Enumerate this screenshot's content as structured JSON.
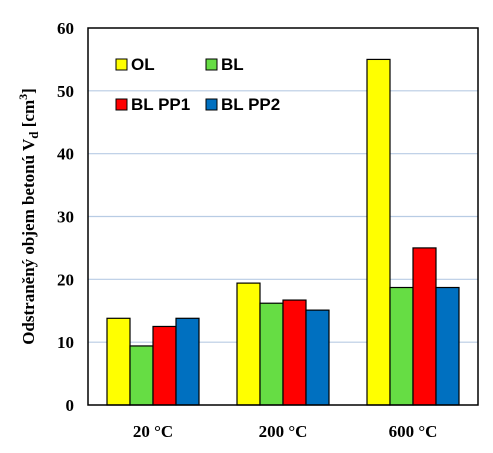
{
  "chart_data": {
    "type": "bar",
    "categories": [
      "20 °C",
      "200 °C",
      "600 °C"
    ],
    "series": [
      {
        "name": "OL",
        "values": [
          13.8,
          19.4,
          55.0
        ],
        "color": "#FFFF00"
      },
      {
        "name": "BL",
        "values": [
          9.4,
          16.2,
          18.7
        ],
        "color": "#66DD44"
      },
      {
        "name": "BL PP1",
        "values": [
          12.5,
          16.7,
          25.0
        ],
        "color": "#FF0000"
      },
      {
        "name": "BL PP2",
        "values": [
          13.8,
          15.1,
          18.7
        ],
        "color": "#0070C0"
      }
    ],
    "ylabel_main": "Odstraněný  objem betonú V",
    "ylabel_sub": "d",
    "ylabel_unit_open": " [cm",
    "ylabel_unit_sup": "3",
    "ylabel_unit_close": "]",
    "ylim": [
      0,
      60
    ],
    "yticks": [
      "0",
      "10",
      "20",
      "30",
      "40",
      "50",
      "60"
    ],
    "grid": true,
    "legend_position": "top-left"
  }
}
